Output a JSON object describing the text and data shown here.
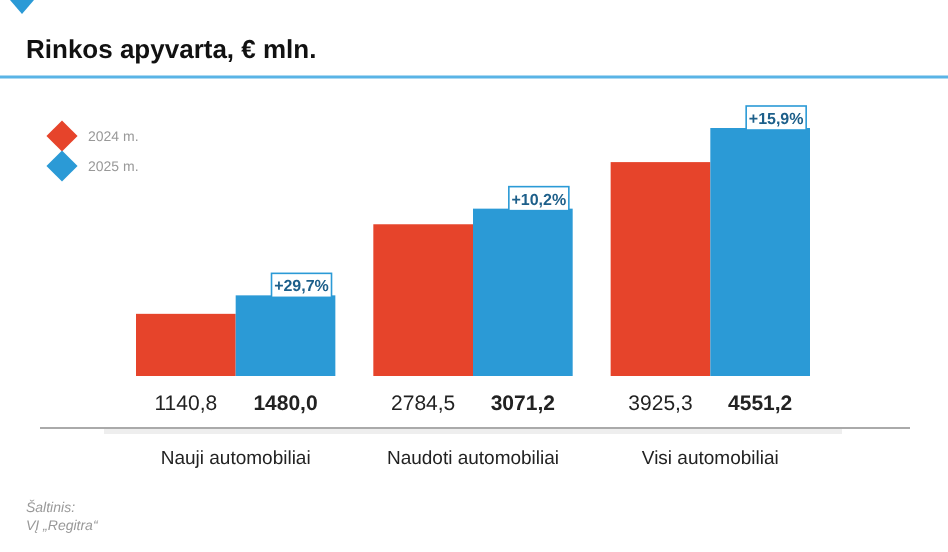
{
  "chart_data": {
    "type": "bar",
    "title": "Rinkos apyvarta, € mln.",
    "categories": [
      "Nauji automobiliai",
      "Naudoti automobiliai",
      "Visi automobiliai"
    ],
    "series": [
      {
        "name": "2024 m.",
        "color": "#e6442b",
        "values": [
          1140.8,
          2784.5,
          3925.3
        ],
        "value_labels": [
          "1140,8",
          "2784,5",
          "3925,3"
        ]
      },
      {
        "name": "2025 m.",
        "color": "#2b9ad6",
        "values": [
          1480.0,
          3071.2,
          4551.2
        ],
        "value_labels": [
          "1480,0",
          "3071,2",
          "4551,2"
        ]
      }
    ],
    "legend": "top left",
    "annotations": [
      {
        "text": "+29,7%",
        "x": "Nauji automobiliai",
        "y": 1480.0
      },
      {
        "text": "+10,2%",
        "x": "Naudoti automobiliai",
        "y": 3071.2
      },
      {
        "text": "+15,9%",
        "x": "Visi automobiliai",
        "y": 4551.2
      },
      "Šaltinis:",
      "VĮ „Regitra“"
    ]
  }
}
